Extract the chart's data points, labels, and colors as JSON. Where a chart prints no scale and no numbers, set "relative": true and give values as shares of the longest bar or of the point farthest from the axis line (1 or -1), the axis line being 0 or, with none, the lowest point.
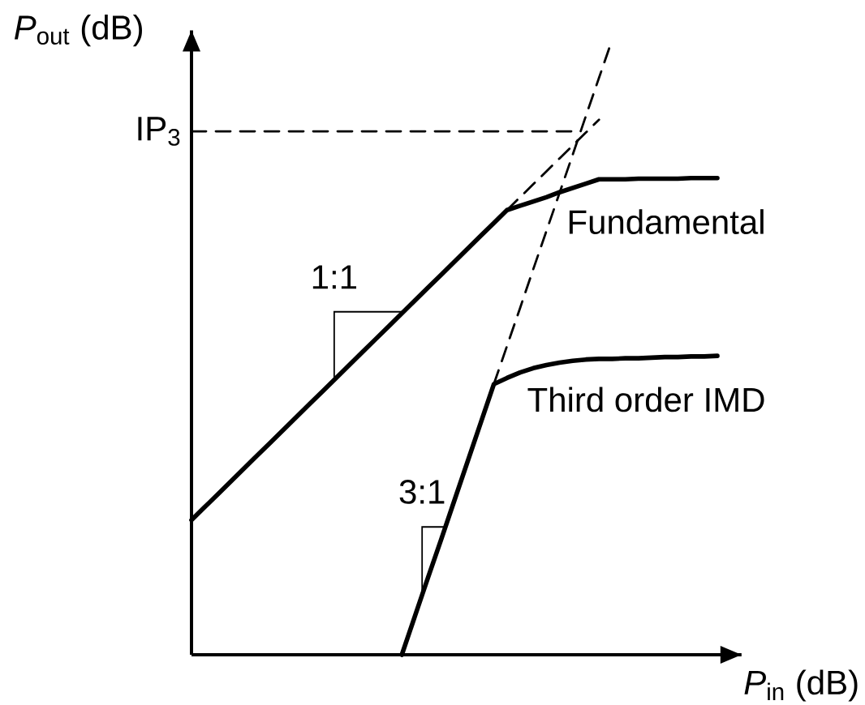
{
  "chart_data": {
    "type": "line",
    "relative": true,
    "xlabel": "*P*$_{in}$ (dB)",
    "ylabel": "*P*$_{out}$ (dB)",
    "line_style": "solid",
    "categories": [
      null,
      null,
      null,
      null,
      null,
      null,
      null,
      null,
      null,
      null,
      null,
      null,
      null,
      null,
      null,
      null,
      null,
      null,
      null,
      null,
      null,
      null,
      null,
      null,
      null,
      null,
      null,
      null,
      null,
      null,
      null,
      null,
      null,
      null,
      null,
      null,
      null,
      null,
      null,
      null,
      null
    ],
    "series": [
      {
        "name": "Fundamental",
        "color": "#000000",
        "values": [
          0.219,
          0.24,
          0.261,
          0.282,
          0.303,
          0.324,
          0.345,
          0.366,
          0.387,
          0.408,
          0.429,
          0.45,
          0.471,
          0.492,
          0.513,
          0.534,
          0.555,
          0.576,
          0.597,
          0.618,
          0.639,
          0.66,
          0.681,
          0.702,
          0.723,
          0.73,
          0.737,
          0.744,
          0.752,
          0.759,
          0.766,
          0.773,
          0.773,
          0.773,
          0.774,
          0.774,
          0.774,
          0.774,
          0.775,
          0.775,
          0.775
        ]
      },
      {
        "name": "Third order IMD",
        "color": "#000000",
        "values": [
          null,
          null,
          null,
          null,
          null,
          null,
          null,
          null,
          null,
          null,
          null,
          null,
          null,
          null,
          null,
          null,
          0,
          0.063,
          0.126,
          0.188,
          0.251,
          0.314,
          0.377,
          0.44,
          0.45,
          0.459,
          0.466,
          0.471,
          0.475,
          0.478,
          0.48,
          0.481,
          0.481,
          0.482,
          0.482,
          0.483,
          0.484,
          0.484,
          0.485,
          0.485,
          0.486
        ]
      },
      {
        "color": "#000000",
        "line_style": "dashed",
        "values": [
          null,
          null,
          null,
          null,
          null,
          null,
          null,
          null,
          null,
          null,
          null,
          null,
          null,
          null,
          null,
          null,
          null,
          null,
          null,
          null,
          null,
          null,
          null,
          null,
          0.723,
          0.744,
          0.765,
          0.786,
          0.807,
          0.828,
          0.849,
          0.87,
          null,
          null,
          null,
          null,
          null,
          null,
          null,
          null,
          null
        ]
      },
      {
        "color": "#000000",
        "line_style": "dashed",
        "values": [
          null,
          null,
          null,
          null,
          null,
          null,
          null,
          null,
          null,
          null,
          null,
          null,
          null,
          null,
          null,
          null,
          null,
          null,
          null,
          null,
          null,
          null,
          null,
          0.44,
          0.502,
          0.564,
          0.627,
          0.689,
          0.751,
          0.813,
          0.876,
          0.938,
          1.0,
          null,
          null,
          null,
          null,
          null,
          null,
          null,
          null
        ]
      },
      {
        "name": "IP$_{3}$",
        "color": "#000000",
        "line_style": "dashed",
        "values": [
          0.851,
          0.851,
          0.851,
          0.851,
          0.851,
          0.851,
          0.851,
          0.851,
          0.851,
          0.851,
          0.851,
          0.851,
          0.851,
          0.851,
          0.851,
          0.851,
          0.851,
          0.851,
          0.851,
          0.851,
          0.851,
          0.851,
          0.851,
          0.851,
          0.851,
          0.851,
          0.851,
          0.851,
          0.851,
          0.851,
          null,
          null,
          null,
          null,
          null,
          null,
          null,
          null,
          null,
          null,
          null
        ]
      }
    ],
    "annotations": [
      "1:1",
      "3:1"
    ]
  }
}
